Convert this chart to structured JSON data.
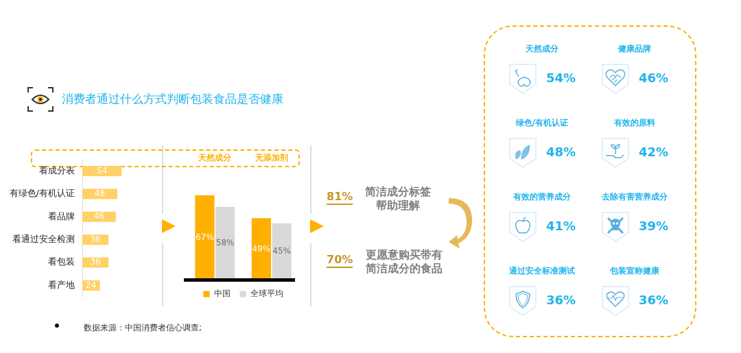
{
  "chart_data": [
    {
      "type": "bar",
      "orientation": "horizontal",
      "title": "消费者通过什么方式判断包装食品是否健康",
      "categories": [
        "看成分表",
        "有绿色/有机认证",
        "看品牌",
        "看通过安全检测",
        "看包装",
        "看产地"
      ],
      "values": [
        54,
        48,
        46,
        36,
        36,
        24
      ],
      "color": "#ffd166",
      "data_labels": true,
      "annotations": [
        "数据来源：中国消费者信心调查;"
      ]
    },
    {
      "type": "bar",
      "categories": [
        "天然成分",
        "无添加剂"
      ],
      "legend": "bottom",
      "series": [
        {
          "name": "中国",
          "color": "#ffb000",
          "values": [
            67,
            49
          ],
          "value_labels": [
            "67%",
            "49%"
          ]
        },
        {
          "name": "全球平均",
          "color": "#d9d9d9",
          "values": [
            58,
            45
          ],
          "value_labels": [
            "58%",
            "45%"
          ]
        }
      ]
    },
    {
      "type": "other",
      "categories": [
        "简洁成分标签帮助理解",
        "更愿意购买带有简洁成分的食品"
      ],
      "values": [
        81,
        70
      ],
      "value_labels": [
        "81%",
        "70%"
      ],
      "color": "#c8962a"
    },
    {
      "type": "other",
      "categories": [
        "天然成分",
        "健康品牌",
        "绿色/有机认证",
        "有效的原料",
        "有效的营养成分",
        "去除有害营养成分",
        "通过安全标准测试",
        "包装宣称健康"
      ],
      "values": [
        54,
        46,
        48,
        42,
        41,
        39,
        36,
        36
      ],
      "value_labels": [
        "54%",
        "46%",
        "48%",
        "42%",
        "41%",
        "39%",
        "36%",
        "36%"
      ],
      "color": "#1fb4ec"
    }
  ]
}
